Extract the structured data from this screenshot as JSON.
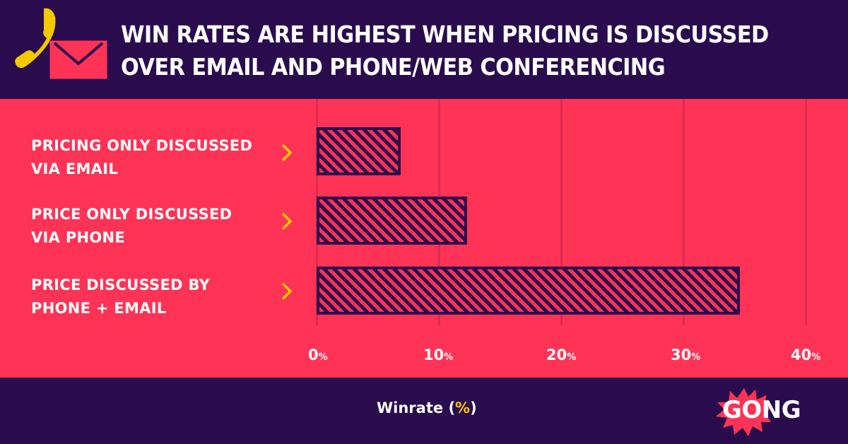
{
  "header": {
    "title_line1": "WIN RATES ARE HIGHEST WHEN PRICING IS DISCUSSED",
    "title_line2": "OVER EMAIL AND PHONE/WEB CONFERENCING",
    "icons": [
      "phone-icon",
      "envelope-icon"
    ]
  },
  "categories": [
    {
      "line1": "PRICING ONLY DISCUSSED",
      "line2": "VIA EMAIL"
    },
    {
      "line1": "PRICE ONLY DISCUSSED",
      "line2": "VIA PHONE"
    },
    {
      "line1": "PRICE DISCUSSED BY",
      "line2": "PHONE + EMAIL"
    }
  ],
  "axis": {
    "ticks": [
      {
        "num": "0",
        "unit": "%"
      },
      {
        "num": "10",
        "unit": "%"
      },
      {
        "num": "20",
        "unit": "%"
      },
      {
        "num": "30",
        "unit": "%"
      },
      {
        "num": "40",
        "unit": "%"
      }
    ],
    "xlabel_text": "Winrate ",
    "xlabel_open": "(",
    "xlabel_pct": "%",
    "xlabel_close": ")"
  },
  "brand": {
    "logo_text": "GONG"
  },
  "colors": {
    "background_dark": "#2a0c4e",
    "panel": "#ff3355",
    "accent": "#ffc800",
    "text": "#ffffff"
  },
  "chart_data": {
    "type": "bar",
    "orientation": "horizontal",
    "title": "WIN RATES ARE HIGHEST WHEN PRICING IS DISCUSSED OVER EMAIL AND PHONE/WEB CONFERENCING",
    "categories": [
      "PRICING ONLY DISCUSSED VIA EMAIL",
      "PRICE ONLY DISCUSSED VIA PHONE",
      "PRICE DISCUSSED BY PHONE + EMAIL"
    ],
    "values": [
      6.9,
      12.3,
      34.6
    ],
    "xlabel": "Winrate (%)",
    "ylabel": "",
    "xlim": [
      0,
      40
    ],
    "xticks": [
      "0%",
      "10%",
      "20%",
      "30%",
      "40%"
    ],
    "grid": true,
    "legend": null
  }
}
